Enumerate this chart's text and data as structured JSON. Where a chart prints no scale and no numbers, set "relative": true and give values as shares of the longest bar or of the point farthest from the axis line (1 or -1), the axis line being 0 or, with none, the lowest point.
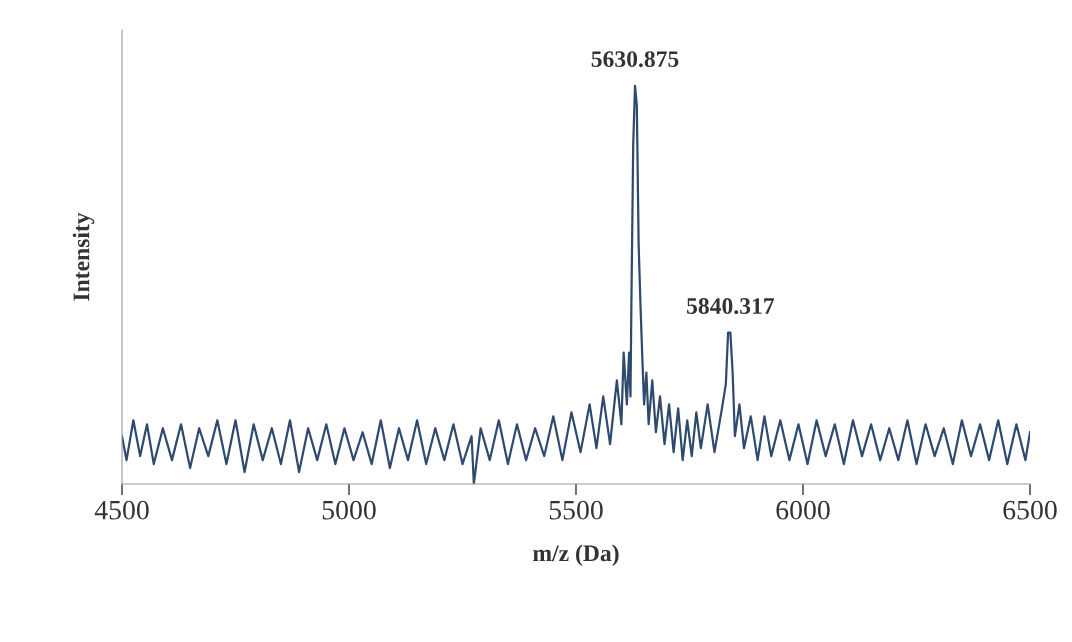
{
  "chart_data": {
    "type": "line",
    "relative": true,
    "xlabel": "m/z (Da)",
    "ylabel": "Intensity",
    "tick_labels": "x",
    "grid": false,
    "xlim": [
      4500,
      6500
    ],
    "xticks": [
      4500,
      5000,
      5500,
      6000,
      6500
    ],
    "annotations": [
      {
        "text": "5630.875",
        "x": 5630,
        "y": 1.0
      },
      {
        "text": "5840.317",
        "x": 5840,
        "y": 0.38
      }
    ],
    "series": [
      {
        "color": "#2e4a6e",
        "x": [
          4500,
          4510,
          4525,
          4540,
          4555,
          4570,
          4590,
          4610,
          4630,
          4650,
          4670,
          4690,
          4710,
          4730,
          4750,
          4770,
          4790,
          4810,
          4830,
          4850,
          4870,
          4890,
          4910,
          4930,
          4950,
          4970,
          4990,
          5010,
          5030,
          5050,
          5070,
          5090,
          5110,
          5130,
          5150,
          5170,
          5190,
          5210,
          5230,
          5250,
          5270,
          5275,
          5290,
          5310,
          5330,
          5350,
          5370,
          5390,
          5410,
          5430,
          5450,
          5470,
          5490,
          5510,
          5530,
          5545,
          5560,
          5575,
          5590,
          5600,
          5605,
          5612,
          5617,
          5620,
          5622,
          5626,
          5630,
          5634,
          5638,
          5642,
          5646,
          5650,
          5655,
          5660,
          5668,
          5676,
          5685,
          5695,
          5705,
          5715,
          5725,
          5735,
          5745,
          5755,
          5765,
          5775,
          5790,
          5805,
          5820,
          5830,
          5835,
          5840,
          5845,
          5850,
          5860,
          5870,
          5885,
          5900,
          5915,
          5930,
          5950,
          5970,
          5990,
          6010,
          6030,
          6050,
          6070,
          6090,
          6110,
          6130,
          6150,
          6170,
          6190,
          6210,
          6230,
          6250,
          6270,
          6290,
          6310,
          6330,
          6350,
          6370,
          6390,
          6410,
          6430,
          6450,
          6470,
          6490,
          6500
        ],
        "values": [
          0.12,
          0.06,
          0.16,
          0.07,
          0.15,
          0.05,
          0.14,
          0.06,
          0.15,
          0.04,
          0.14,
          0.07,
          0.16,
          0.05,
          0.16,
          0.03,
          0.15,
          0.06,
          0.14,
          0.05,
          0.16,
          0.03,
          0.14,
          0.06,
          0.15,
          0.05,
          0.14,
          0.06,
          0.13,
          0.05,
          0.16,
          0.04,
          0.14,
          0.06,
          0.16,
          0.05,
          0.14,
          0.06,
          0.15,
          0.05,
          0.12,
          0.0,
          0.14,
          0.06,
          0.16,
          0.05,
          0.15,
          0.06,
          0.14,
          0.07,
          0.17,
          0.06,
          0.18,
          0.08,
          0.2,
          0.09,
          0.22,
          0.1,
          0.26,
          0.15,
          0.33,
          0.2,
          0.33,
          0.22,
          0.45,
          0.85,
          1.0,
          0.95,
          0.6,
          0.45,
          0.32,
          0.2,
          0.28,
          0.15,
          0.26,
          0.13,
          0.22,
          0.1,
          0.2,
          0.08,
          0.19,
          0.06,
          0.16,
          0.07,
          0.18,
          0.09,
          0.2,
          0.08,
          0.18,
          0.25,
          0.38,
          0.38,
          0.28,
          0.12,
          0.2,
          0.09,
          0.17,
          0.06,
          0.17,
          0.07,
          0.16,
          0.06,
          0.15,
          0.05,
          0.16,
          0.07,
          0.15,
          0.05,
          0.16,
          0.07,
          0.15,
          0.06,
          0.14,
          0.06,
          0.16,
          0.05,
          0.15,
          0.07,
          0.14,
          0.05,
          0.16,
          0.07,
          0.15,
          0.06,
          0.16,
          0.05,
          0.15,
          0.06,
          0.13
        ]
      }
    ]
  }
}
